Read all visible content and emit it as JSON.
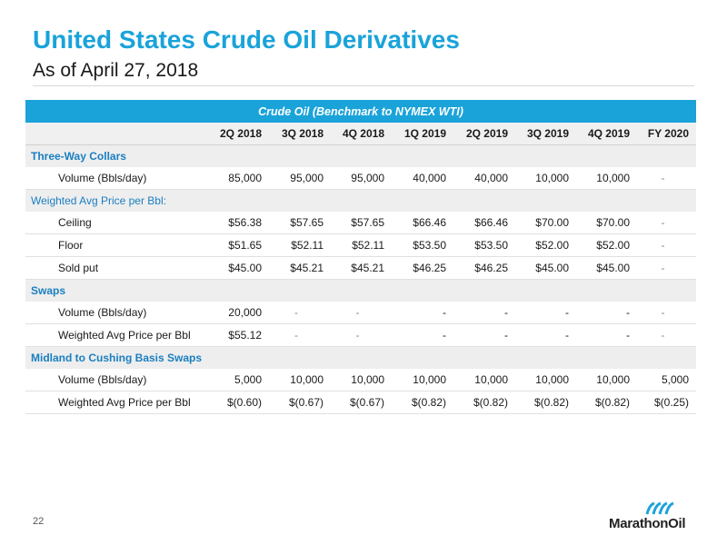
{
  "header": {
    "title": "United States Crude Oil Derivatives",
    "subtitle": "As of April 27, 2018"
  },
  "table": {
    "banner": "Crude Oil (Benchmark to NYMEX WTI)",
    "columns": [
      "2Q 2018",
      "3Q 2018",
      "4Q 2018",
      "1Q 2019",
      "2Q 2019",
      "3Q 2019",
      "4Q 2019",
      "FY 2020"
    ],
    "sections": [
      {
        "title": "Three-Way Collars",
        "rows": [
          {
            "label": "Volume (Bbls/day)",
            "values": [
              "85,000",
              "95,000",
              "95,000",
              "40,000",
              "40,000",
              "10,000",
              "10,000",
              "-"
            ]
          }
        ]
      },
      {
        "title": "Weighted Avg Price per Bbl:",
        "rows": [
          {
            "label": "Ceiling",
            "values": [
              "$56.38",
              "$57.65",
              "$57.65",
              "$66.46",
              "$66.46",
              "$70.00",
              "$70.00",
              "-"
            ]
          },
          {
            "label": "Floor",
            "values": [
              "$51.65",
              "$52.11",
              "$52.11",
              "$53.50",
              "$53.50",
              "$52.00",
              "$52.00",
              "-"
            ]
          },
          {
            "label": "Sold put",
            "values": [
              "$45.00",
              "$45.21",
              "$45.21",
              "$46.25",
              "$46.25",
              "$45.00",
              "$45.00",
              "-"
            ]
          }
        ]
      },
      {
        "title": "Swaps",
        "rows": [
          {
            "label": "Volume (Bbls/day)",
            "values": [
              "20,000",
              "-",
              "-",
              "-",
              "-",
              "-",
              "-",
              "-"
            ]
          },
          {
            "label": "Weighted Avg Price per Bbl",
            "values": [
              "$55.12",
              "-",
              "-",
              "-",
              "-",
              "-",
              "-",
              "-"
            ]
          }
        ]
      },
      {
        "title": "Midland to Cushing Basis Swaps",
        "rows": [
          {
            "label": "Volume (Bbls/day)",
            "values": [
              "5,000",
              "10,000",
              "10,000",
              "10,000",
              "10,000",
              "10,000",
              "10,000",
              "5,000"
            ]
          },
          {
            "label": "Weighted Avg Price per Bbl",
            "values": [
              "$(0.60)",
              "$(0.67)",
              "$(0.67)",
              "$(0.82)",
              "$(0.82)",
              "$(0.82)",
              "$(0.82)",
              "$(0.25)"
            ]
          }
        ]
      }
    ]
  },
  "footer": {
    "page_number": "22",
    "logo_text": "MarathonOil",
    "logo_icon": "marathon-oil-logo-icon"
  },
  "colors": {
    "accent": "#1aa3d9",
    "section_text": "#1a7fc1"
  }
}
